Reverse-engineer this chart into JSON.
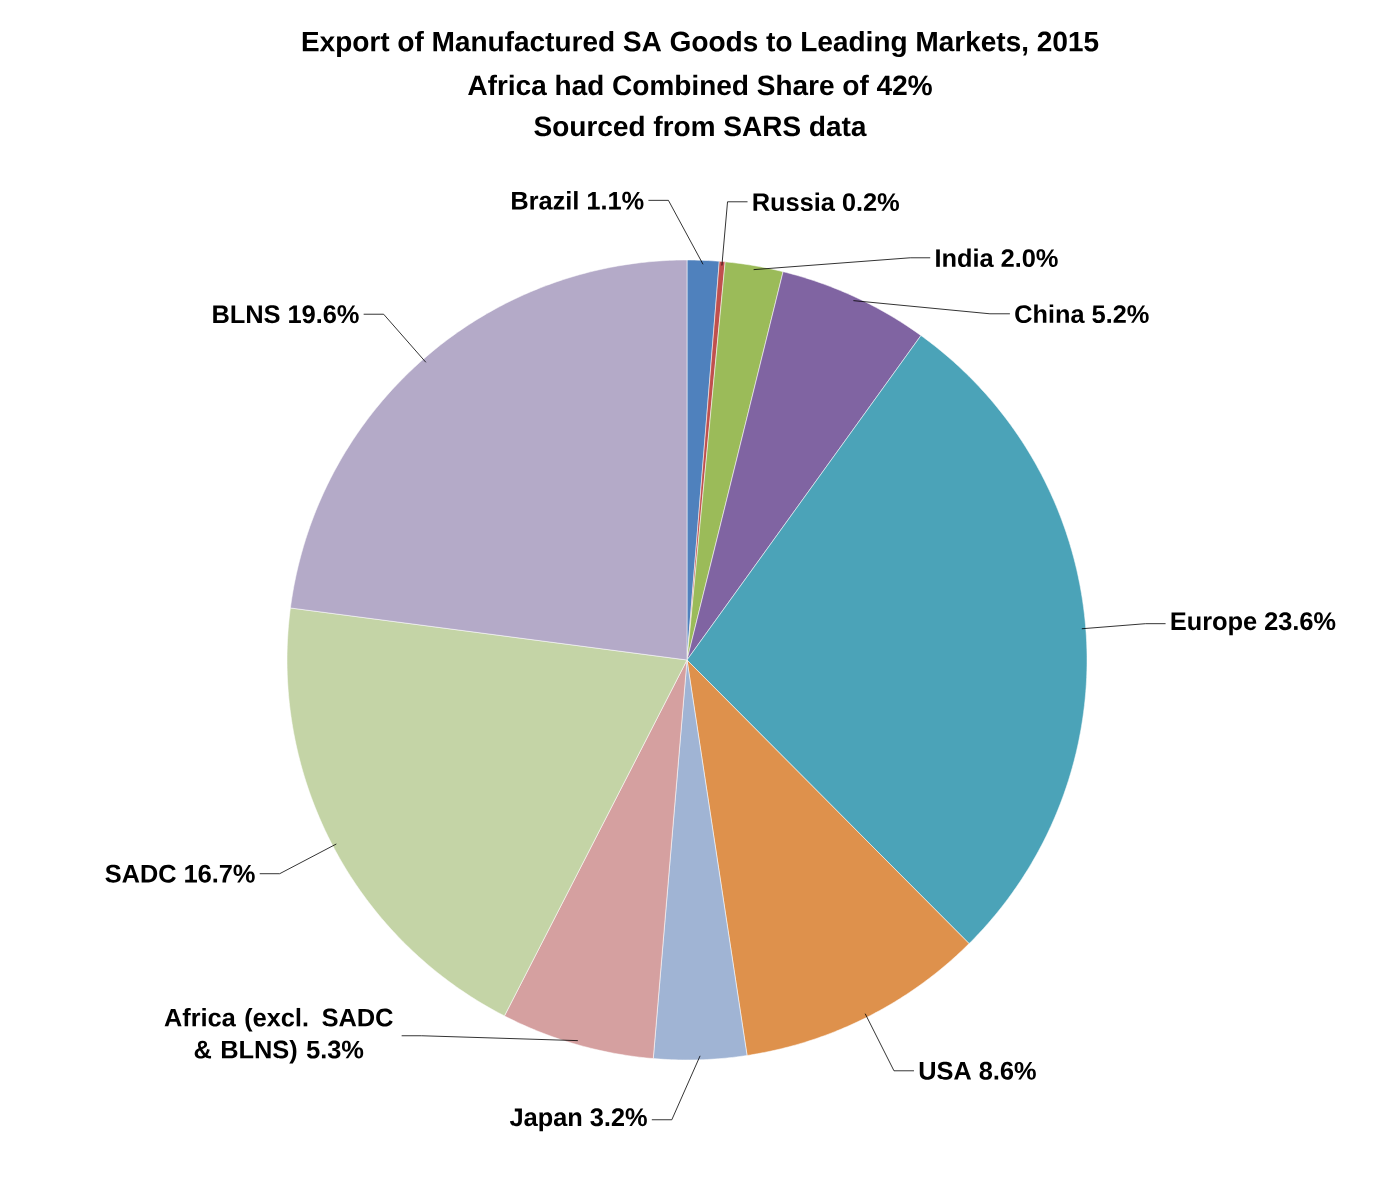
{
  "chart_data": {
    "type": "pie",
    "title": "Export of Manufactured SA Goods to Leading Markets, 2015",
    "subtitle": "Africa had Combined Share of 42%",
    "annotations": [
      "Sourced from SARS data"
    ],
    "categories": [
      "Brazil",
      "Russia",
      "India",
      "China",
      "Europe",
      "USA",
      "Japan",
      "Africa (excl. SADC & BLNS)",
      "SADC",
      "BLNS"
    ],
    "values": [
      1.1,
      0.2,
      2.0,
      5.2,
      23.6,
      8.6,
      3.2,
      5.3,
      16.7,
      19.6
    ],
    "value_labels": [
      "1.1%",
      "0.2%",
      "2.0%",
      "5.2%",
      "23.6%",
      "8.6%",
      "3.2%",
      "5.3%",
      "16.7%",
      "19.6%"
    ],
    "colors": [
      "#4f81bd",
      "#c0504d",
      "#9bbb59",
      "#8064a2",
      "#4ba3b8",
      "#de914c",
      "#a0b4d4",
      "#d5a0a0",
      "#c4d4a6",
      "#b4aac8"
    ]
  }
}
